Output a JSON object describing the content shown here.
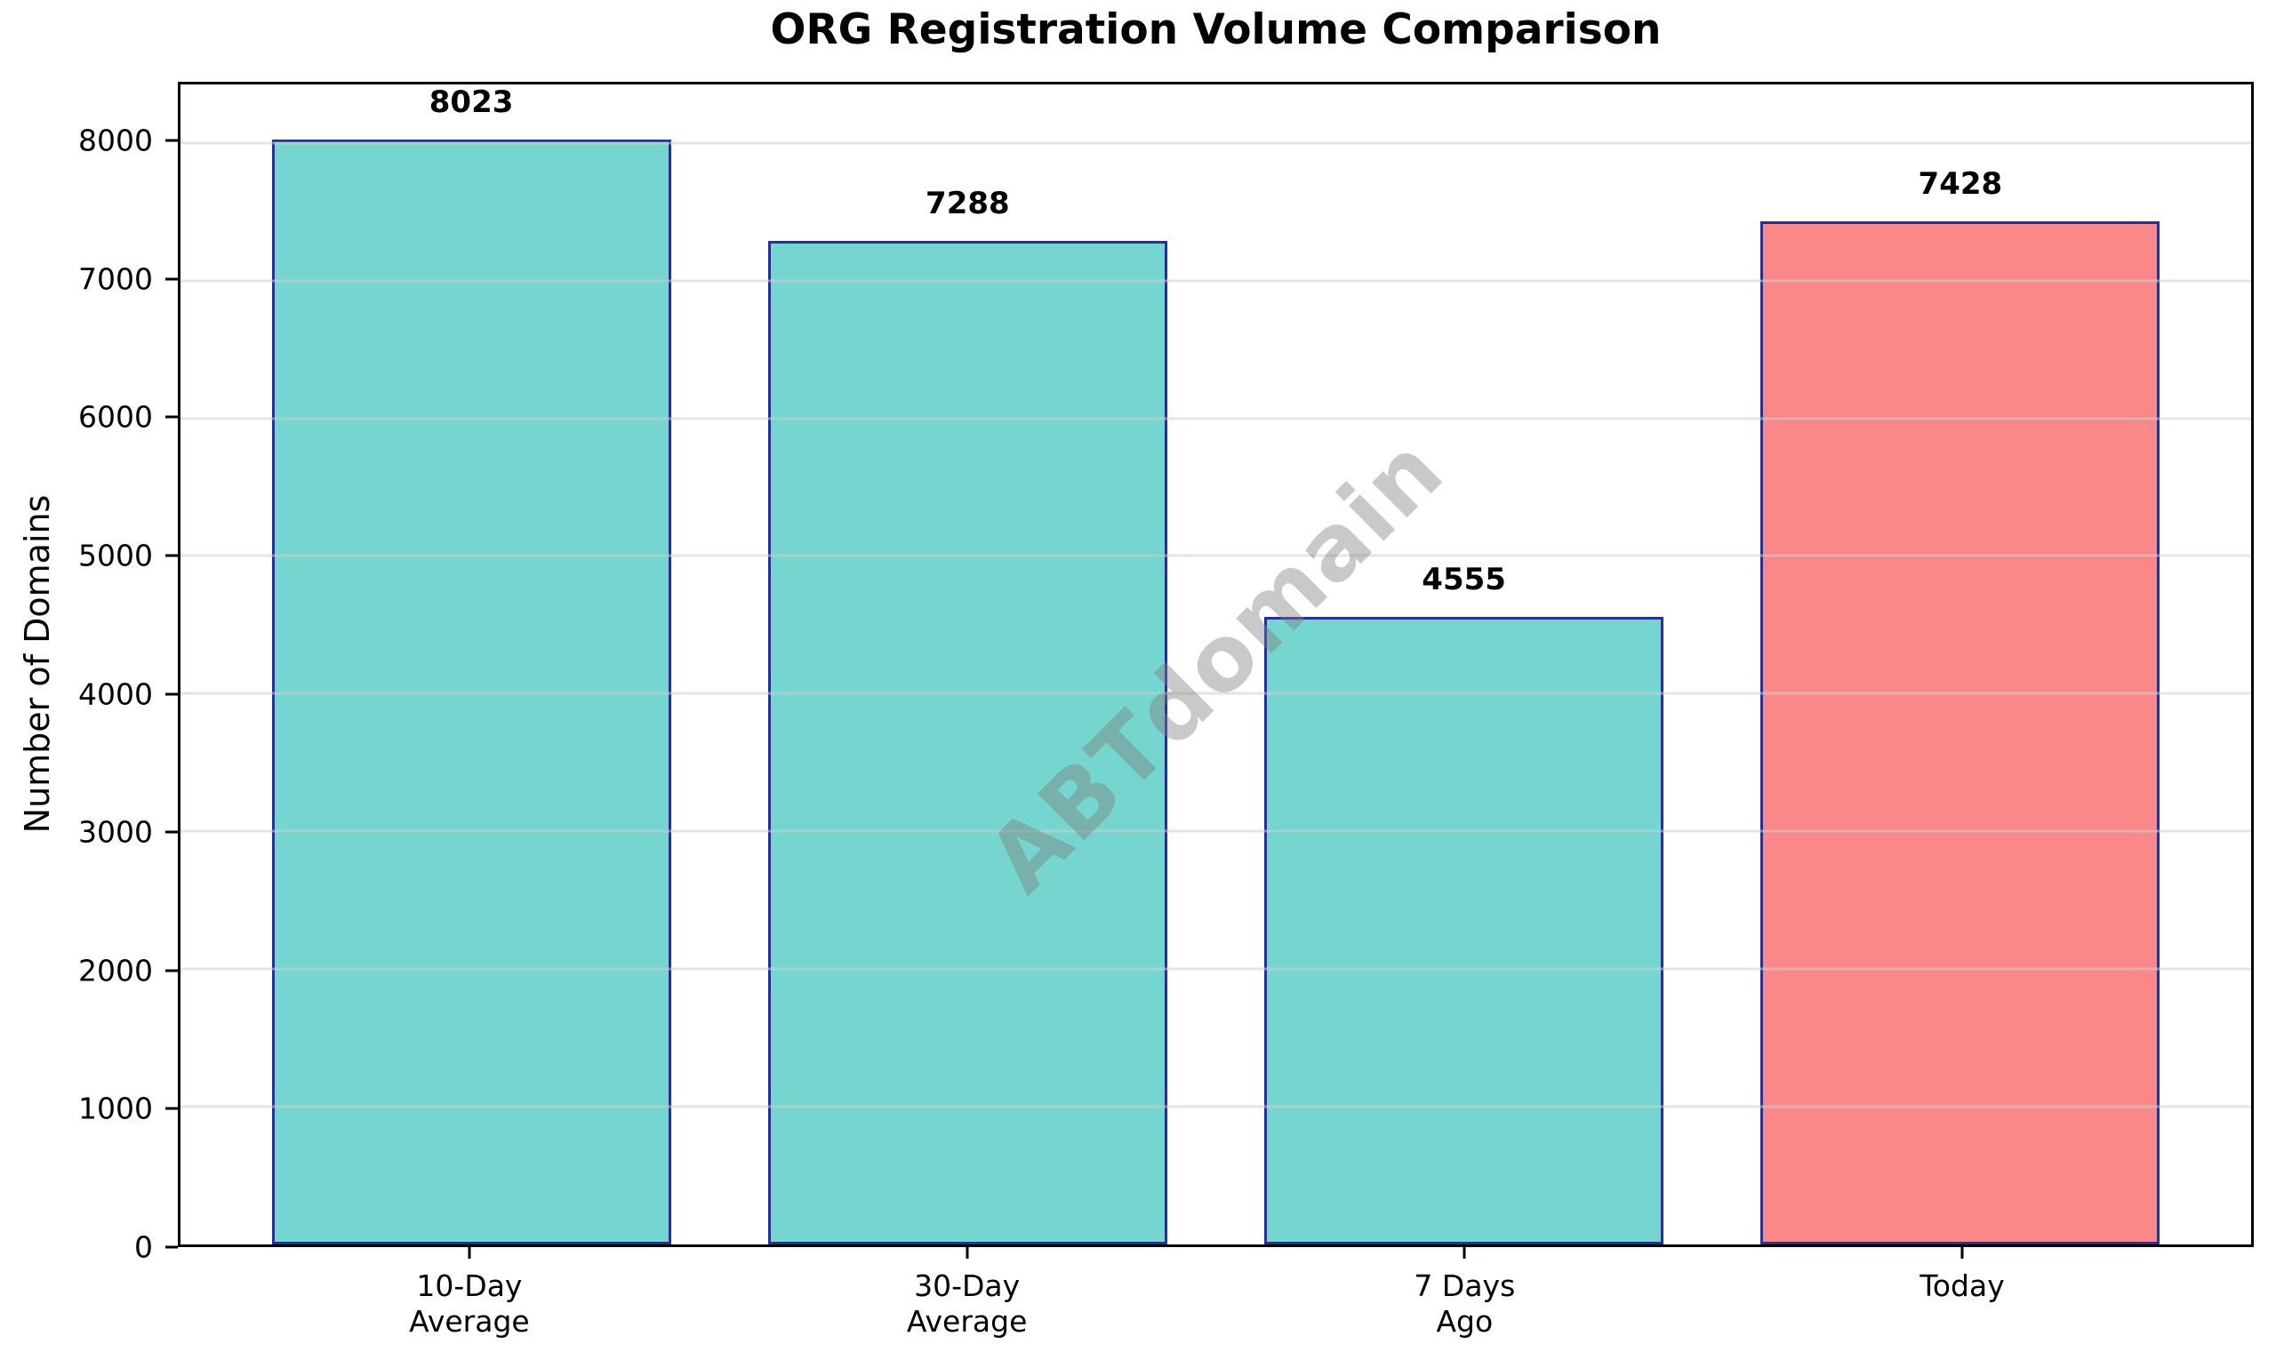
{
  "chart_data": {
    "type": "bar",
    "title": "ORG Registration Volume Comparison",
    "xlabel": "",
    "ylabel": "Number of Domains",
    "categories": [
      [
        "10-Day",
        "Average"
      ],
      [
        "30-Day",
        "Average"
      ],
      [
        "7 Days",
        "Ago"
      ],
      [
        "Today"
      ]
    ],
    "values": [
      8023,
      7288,
      4555,
      7428
    ],
    "value_labels": [
      "8023",
      "7288",
      "4555",
      "7428"
    ],
    "bar_colors": [
      "#74d6ce",
      "#74d6ce",
      "#74d6ce",
      "#fa8888"
    ],
    "bar_edge_color": "#25309c",
    "ylim": [
      0,
      8424
    ],
    "yticks": [
      0,
      1000,
      2000,
      3000,
      4000,
      5000,
      6000,
      7000,
      8000
    ],
    "grid": "horizontal",
    "grid_color": "#e8e8e8",
    "legend": "none",
    "watermark": "ABTdomain",
    "watermark_color": "#bfbfbf"
  }
}
